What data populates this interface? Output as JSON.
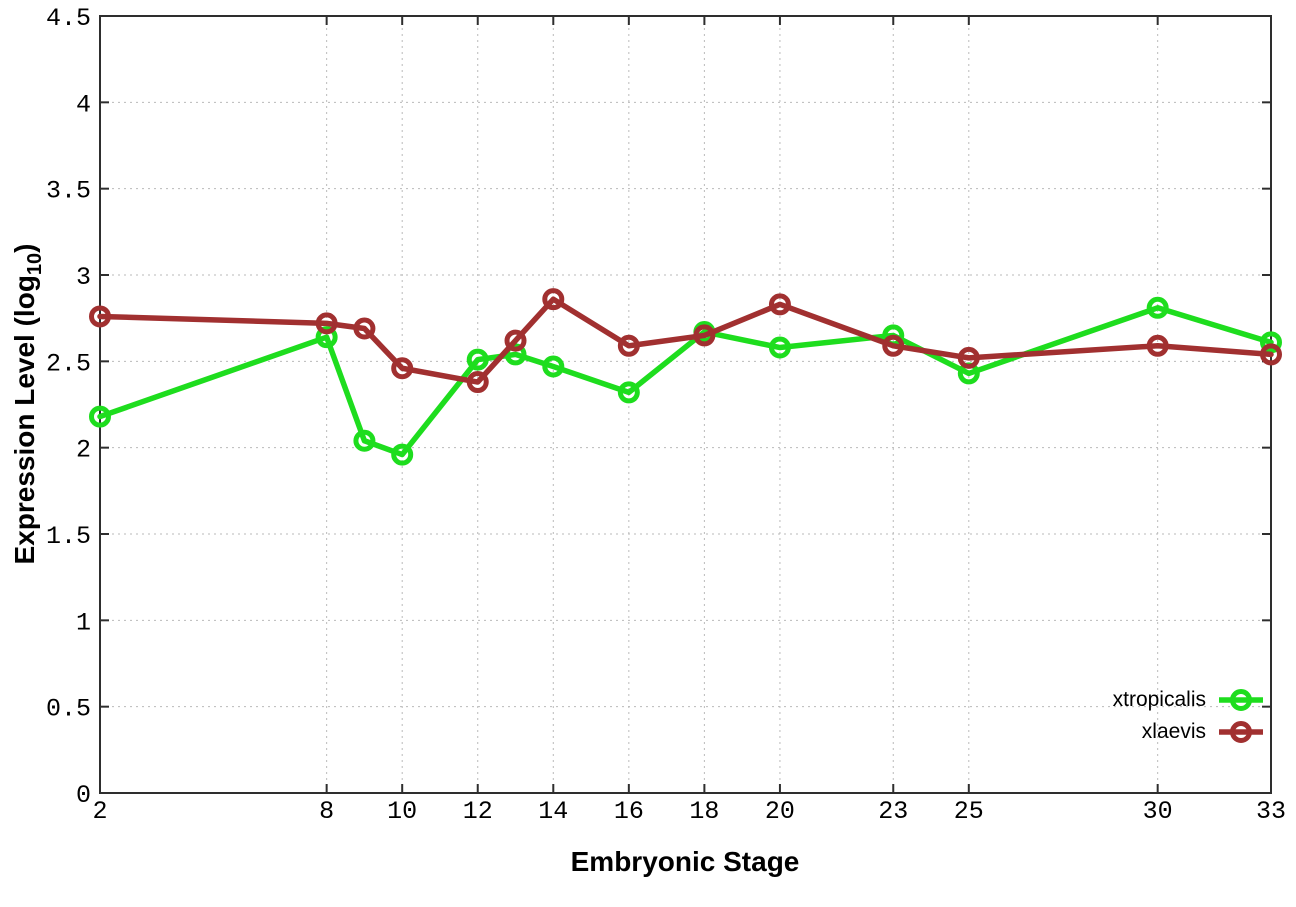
{
  "chart_data": {
    "type": "line",
    "title": "",
    "xlabel": "Embryonic Stage",
    "ylabel_prefix": "Expression Level (log",
    "ylabel_sub": "10",
    "ylabel_suffix": ")",
    "xlim": [
      2,
      33
    ],
    "ylim": [
      0,
      4.5
    ],
    "grid": true,
    "legend_position": "inside bottom-right",
    "x_ticks": [
      2,
      8,
      10,
      12,
      14,
      16,
      18,
      20,
      23,
      25,
      30,
      33
    ],
    "x_tick_labels": [
      "2",
      "8",
      "10",
      "12",
      "14",
      "16",
      "18",
      "20",
      "23",
      "25",
      "30",
      "33"
    ],
    "y_ticks": [
      0,
      0.5,
      1,
      1.5,
      2,
      2.5,
      3,
      3.5,
      4,
      4.5
    ],
    "y_tick_labels": [
      "0",
      "0.5",
      "1",
      "1.5",
      "2",
      "2.5",
      "3",
      "3.5",
      "4",
      "4.5"
    ],
    "x": [
      2,
      8,
      9,
      10,
      12,
      13,
      14,
      16,
      18,
      20,
      23,
      25,
      30,
      33
    ],
    "series": [
      {
        "name": "xtropicalis",
        "color": "#1edd1e",
        "values": [
          2.18,
          2.64,
          2.04,
          1.96,
          2.51,
          2.54,
          2.47,
          2.32,
          2.67,
          2.58,
          2.65,
          2.43,
          2.81,
          2.61
        ]
      },
      {
        "name": "xlaevis",
        "color": "#a13030",
        "values": [
          2.76,
          2.72,
          2.69,
          2.46,
          2.38,
          2.62,
          2.86,
          2.59,
          2.65,
          2.83,
          2.59,
          2.52,
          2.59,
          2.54
        ]
      }
    ],
    "style": {
      "grid_color": "#bababa",
      "border_color": "#2e2e2e",
      "marker": "open-circle",
      "marker_radius": 8.5,
      "marker_stroke": 5,
      "line_width": 5.5
    }
  }
}
